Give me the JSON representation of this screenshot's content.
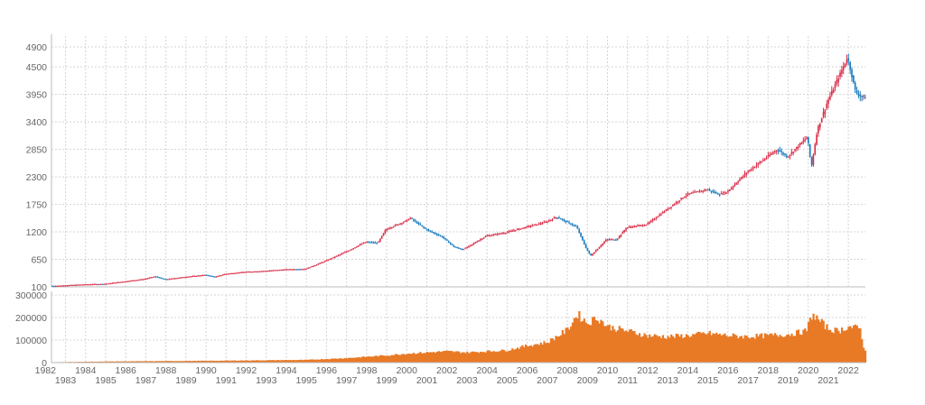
{
  "chart_data": [
    {
      "type": "candlestick",
      "title": "",
      "xlabel": "",
      "ylabel": "",
      "ylim": [
        100,
        4900
      ],
      "y_ticks": [
        100,
        650,
        1200,
        1750,
        2300,
        2850,
        3400,
        3950,
        4500,
        4900
      ],
      "grid": true,
      "colors": {
        "up": "#d9304a",
        "down": "#1a7bbf"
      },
      "monthly_closes_description_points": {
        "x": [
          1982.5,
          1984.0,
          1985.0,
          1986.0,
          1987.0,
          1987.5,
          1988.0,
          1989.0,
          1990.0,
          1990.5,
          1991.0,
          1992.0,
          1993.0,
          1994.0,
          1995.0,
          1996.0,
          1997.0,
          1998.0,
          1998.6,
          1999.0,
          2000.0,
          2000.2,
          2001.0,
          2001.8,
          2002.4,
          2002.8,
          2003.0,
          2004.0,
          2005.0,
          2006.0,
          2007.0,
          2007.5,
          2008.0,
          2008.5,
          2009.0,
          2009.2,
          2010.0,
          2010.5,
          2011.0,
          2012.0,
          2013.0,
          2014.0,
          2015.0,
          2015.6,
          2016.0,
          2017.0,
          2018.0,
          2018.5,
          2019.0,
          2020.0,
          2020.2,
          2020.5,
          2021.0,
          2021.9,
          2022.0,
          2022.4,
          2022.7
        ],
        "y": [
          120,
          150,
          160,
          210,
          260,
          310,
          250,
          300,
          340,
          300,
          360,
          400,
          420,
          450,
          460,
          620,
          800,
          1000,
          980,
          1250,
          1420,
          1480,
          1250,
          1100,
          900,
          850,
          880,
          1120,
          1190,
          1300,
          1400,
          1500,
          1400,
          1300,
          850,
          720,
          1050,
          1050,
          1290,
          1350,
          1650,
          1950,
          2050,
          1950,
          2000,
          2400,
          2700,
          2850,
          2700,
          3100,
          2500,
          3250,
          3800,
          4600,
          4700,
          4000,
          3900
        ]
      }
    },
    {
      "type": "bar",
      "title": "",
      "xlabel": "",
      "ylabel": "",
      "ylim": [
        0,
        300000
      ],
      "y_ticks": [
        0,
        100000,
        200000,
        300000
      ],
      "colors": {
        "bar": "#e87a26"
      },
      "volume_points": {
        "x": [
          1982.5,
          1985.0,
          1990.0,
          1995.0,
          1997.0,
          1999.0,
          2000.0,
          2002.0,
          2003.0,
          2004.0,
          2005.0,
          2006.0,
          2007.0,
          2008.0,
          2008.5,
          2009.0,
          2009.5,
          2010.0,
          2011.0,
          2012.0,
          2013.0,
          2014.0,
          2015.0,
          2016.0,
          2017.0,
          2018.0,
          2019.0,
          2019.9,
          2020.2,
          2021.0,
          2021.5,
          2022.0,
          2022.6,
          2022.8
        ],
        "y": [
          2000,
          5000,
          8000,
          12000,
          20000,
          32000,
          40000,
          50000,
          45000,
          50000,
          55000,
          75000,
          90000,
          145000,
          215000,
          175000,
          200000,
          160000,
          140000,
          120000,
          115000,
          120000,
          130000,
          120000,
          115000,
          120000,
          125000,
          140000,
          215000,
          150000,
          140000,
          160000,
          150000,
          50000
        ]
      }
    }
  ],
  "x_axis": {
    "labels_row1": [
      "1982",
      "1984",
      "1986",
      "1988",
      "1990",
      "1992",
      "1994",
      "1996",
      "1998",
      "2000",
      "2002",
      "2004",
      "2006",
      "2008",
      "2010",
      "2012",
      "2014",
      "2016",
      "2018",
      "2020",
      "2022"
    ],
    "labels_row2": [
      "1983",
      "1985",
      "1987",
      "1989",
      "1991",
      "1993",
      "1995",
      "1997",
      "1999",
      "2001",
      "2003",
      "2005",
      "2007",
      "2009",
      "2011",
      "2013",
      "2015",
      "2017",
      "2019",
      "2021"
    ]
  }
}
